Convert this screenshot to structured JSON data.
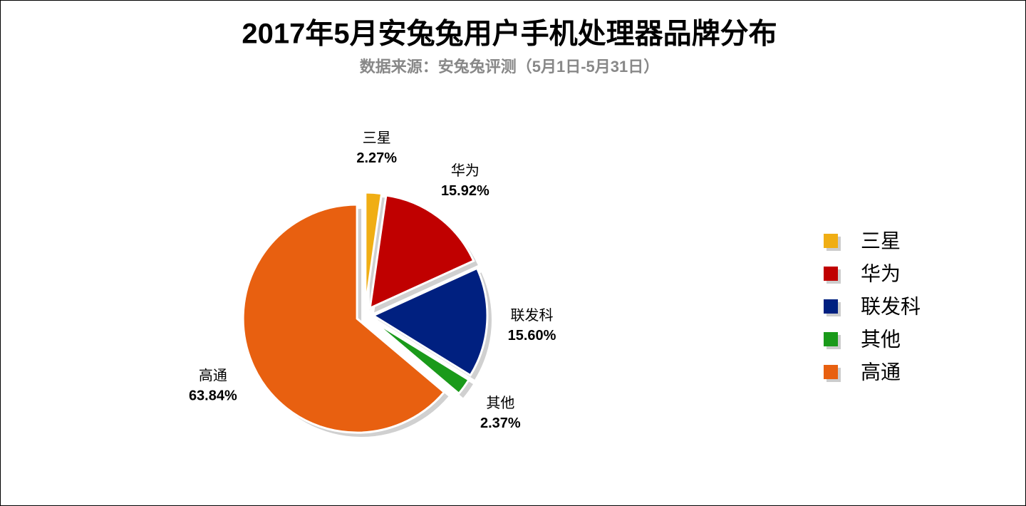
{
  "chart_data": {
    "type": "pie",
    "title": "2017年5月安兔兔用户手机处理器品牌分布",
    "subtitle": "数据来源：安兔兔评测（5月1日-5月31日）",
    "categories": [
      "三星",
      "华为",
      "联发科",
      "其他",
      "高通"
    ],
    "values": [
      2.27,
      15.92,
      15.6,
      2.37,
      63.84
    ],
    "value_labels": [
      "2.27%",
      "15.92%",
      "15.60%",
      "2.37%",
      "63.84%"
    ],
    "colors": [
      "#f0ae14",
      "#c00000",
      "#002080",
      "#1a9a1a",
      "#e86010"
    ],
    "legend": "right"
  }
}
